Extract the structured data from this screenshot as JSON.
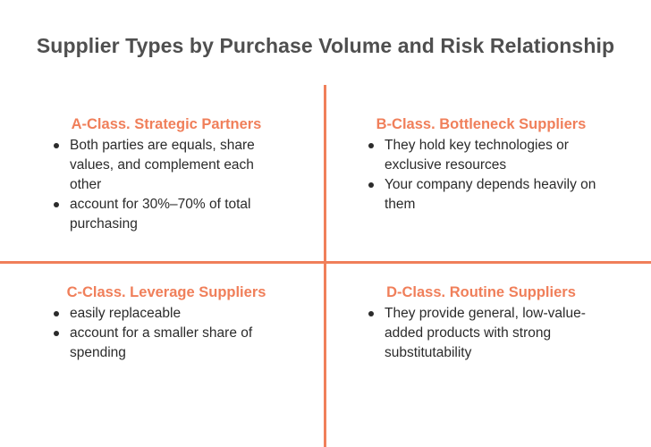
{
  "title": "Supplier Types by Purchase Volume and Risk Relationship",
  "colors": {
    "accent": "#f07f5a",
    "title": "#4f4f4f",
    "text": "#2b2b2b"
  },
  "quadrants": [
    {
      "heading": "A-Class. Strategic Partners",
      "bullets": [
        "Both parties are equals, share values, and complement each other",
        "account for 30%–70% of total purchasing"
      ]
    },
    {
      "heading": "B-Class. Bottleneck Suppliers",
      "bullets": [
        "They hold key technologies or exclusive resources",
        "Your company depends heavily on them"
      ]
    },
    {
      "heading": "C-Class. Leverage Suppliers",
      "bullets": [
        "easily replaceable",
        "account for a smaller share of spending"
      ]
    },
    {
      "heading": "D-Class. Routine Suppliers",
      "bullets": [
        "They provide general, low-value-added products with strong substitutability"
      ]
    }
  ]
}
